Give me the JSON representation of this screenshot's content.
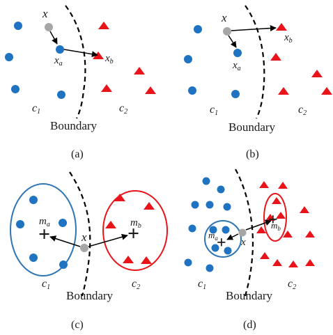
{
  "colors": {
    "class1": "#1f73c1",
    "class2": "#e8141a",
    "query_point": "#a6a6a6",
    "boundary": "#000000",
    "ellipse_a": "#2e75b6",
    "ellipse_b": "#e8141a"
  },
  "labels": {
    "boundary": "Boundary",
    "x": "x",
    "xa_base": "x",
    "xa_sub": "a",
    "xb_base": "x",
    "xb_sub": "b",
    "ma_base": "m",
    "ma_sub": "a",
    "mb_base": "m",
    "mb_sub": "b",
    "c1_base": "c",
    "c1_sub": "1",
    "c2_base": "c",
    "c2_sub": "2",
    "cross": "+"
  },
  "panels": [
    {
      "caption": "(a)"
    },
    {
      "caption": "(b)"
    },
    {
      "caption": "(c)"
    },
    {
      "caption": "(d)"
    }
  ]
}
